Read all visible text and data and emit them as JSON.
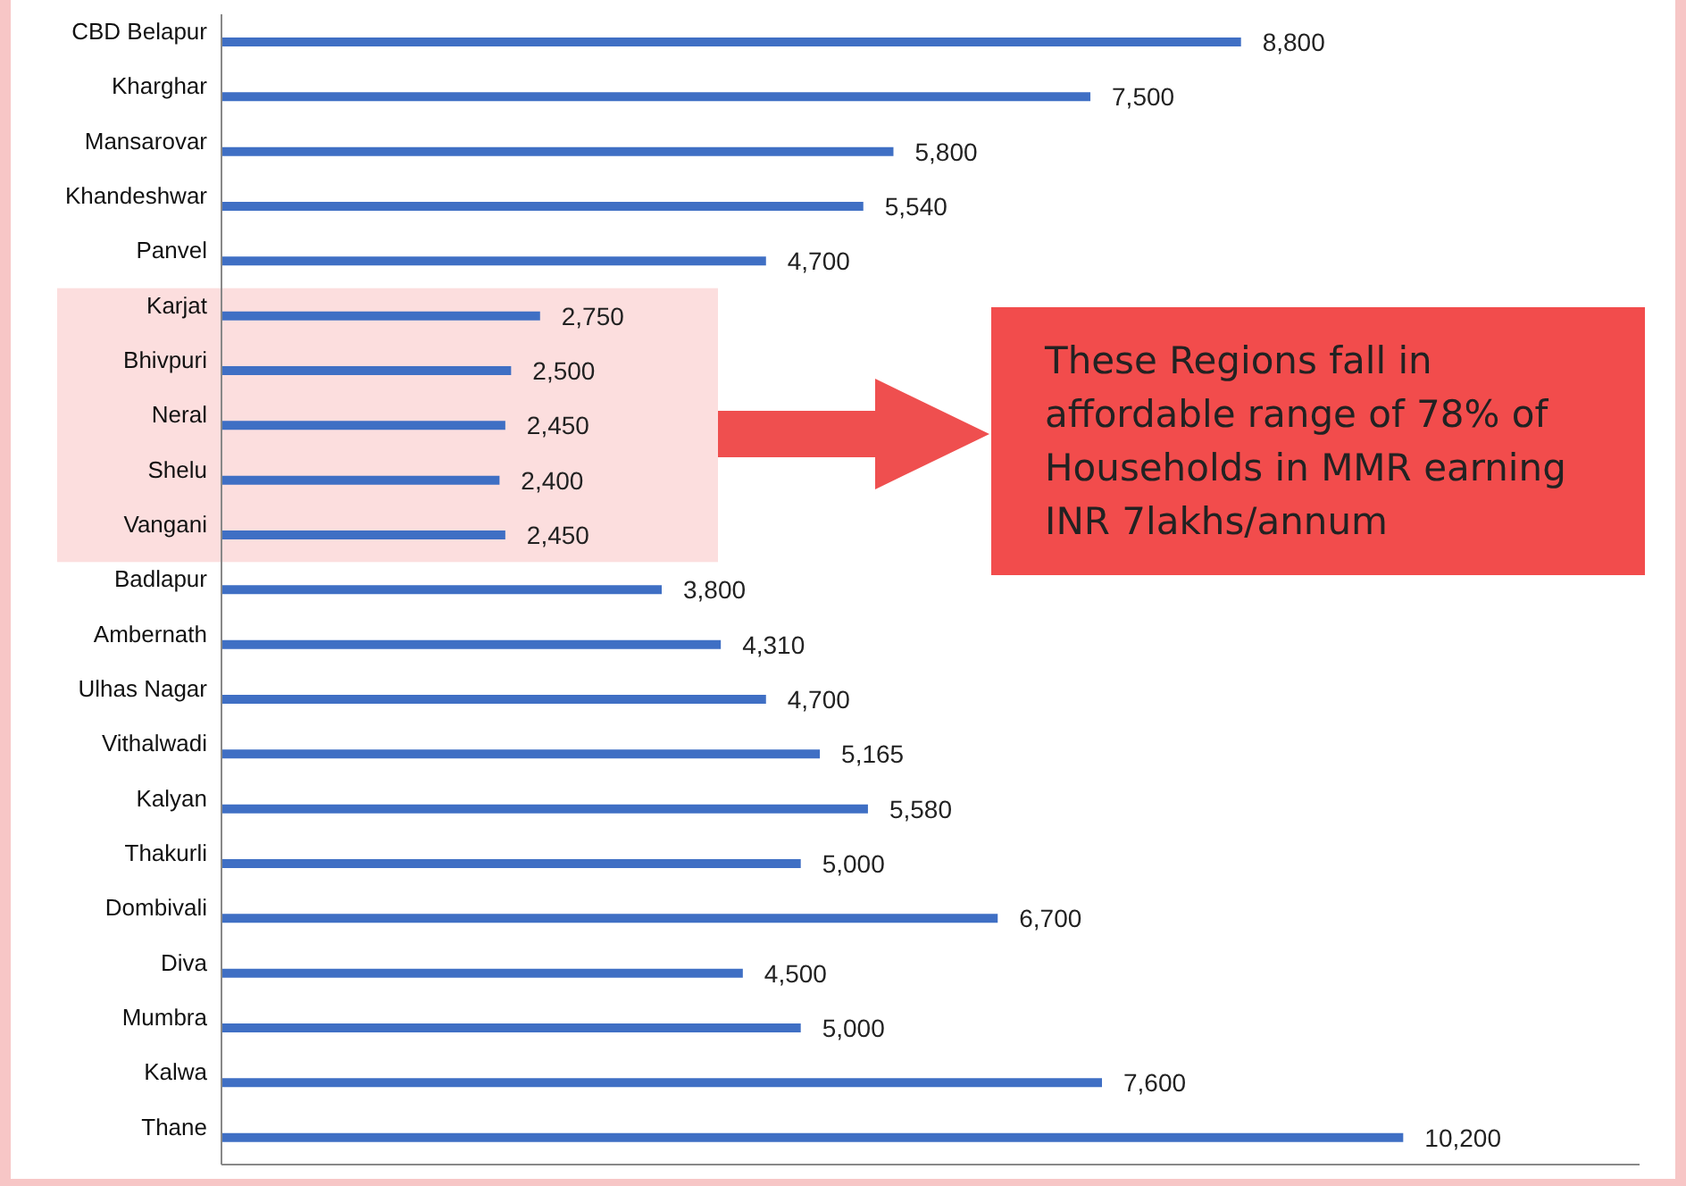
{
  "chart_data": {
    "type": "bar",
    "orientation": "horizontal",
    "categories": [
      "CBD Belapur",
      "Kharghar",
      "Mansarovar",
      "Khandeshwar",
      "Panvel",
      "Karjat",
      "Bhivpuri",
      "Neral",
      "Shelu",
      "Vangani",
      "Badlapur",
      "Ambernath",
      "Ulhas Nagar",
      "Vithalwadi",
      "Kalyan",
      "Thakurli",
      "Dombivali",
      "Diva",
      "Mumbra",
      "Kalwa",
      "Thane"
    ],
    "values": [
      8800,
      7500,
      5800,
      5540,
      4700,
      2750,
      2500,
      2450,
      2400,
      2450,
      3800,
      4310,
      4700,
      5165,
      5580,
      5000,
      6700,
      4500,
      5000,
      7600,
      10200
    ],
    "value_labels": [
      "8,800",
      "7,500",
      "5,800",
      "5,540",
      "4,700",
      "2,750",
      "2,500",
      "2,450",
      "2,400",
      "2,450",
      "3,800",
      "4,310",
      "4,700",
      "5,165",
      "5,580",
      "5,000",
      "6,700",
      "4,500",
      "5,000",
      "7,600",
      "10,200"
    ],
    "color": "#3f6fc4",
    "bands": [
      {
        "axis": "y",
        "from": "Karjat",
        "to": "Vangani",
        "color": "#fcdede"
      }
    ],
    "annotations": [
      "These Regions fall in affordable range of 78% of Households in MMR earning INR 7lakhs/annum"
    ],
    "grid": false,
    "legend": false
  }
}
